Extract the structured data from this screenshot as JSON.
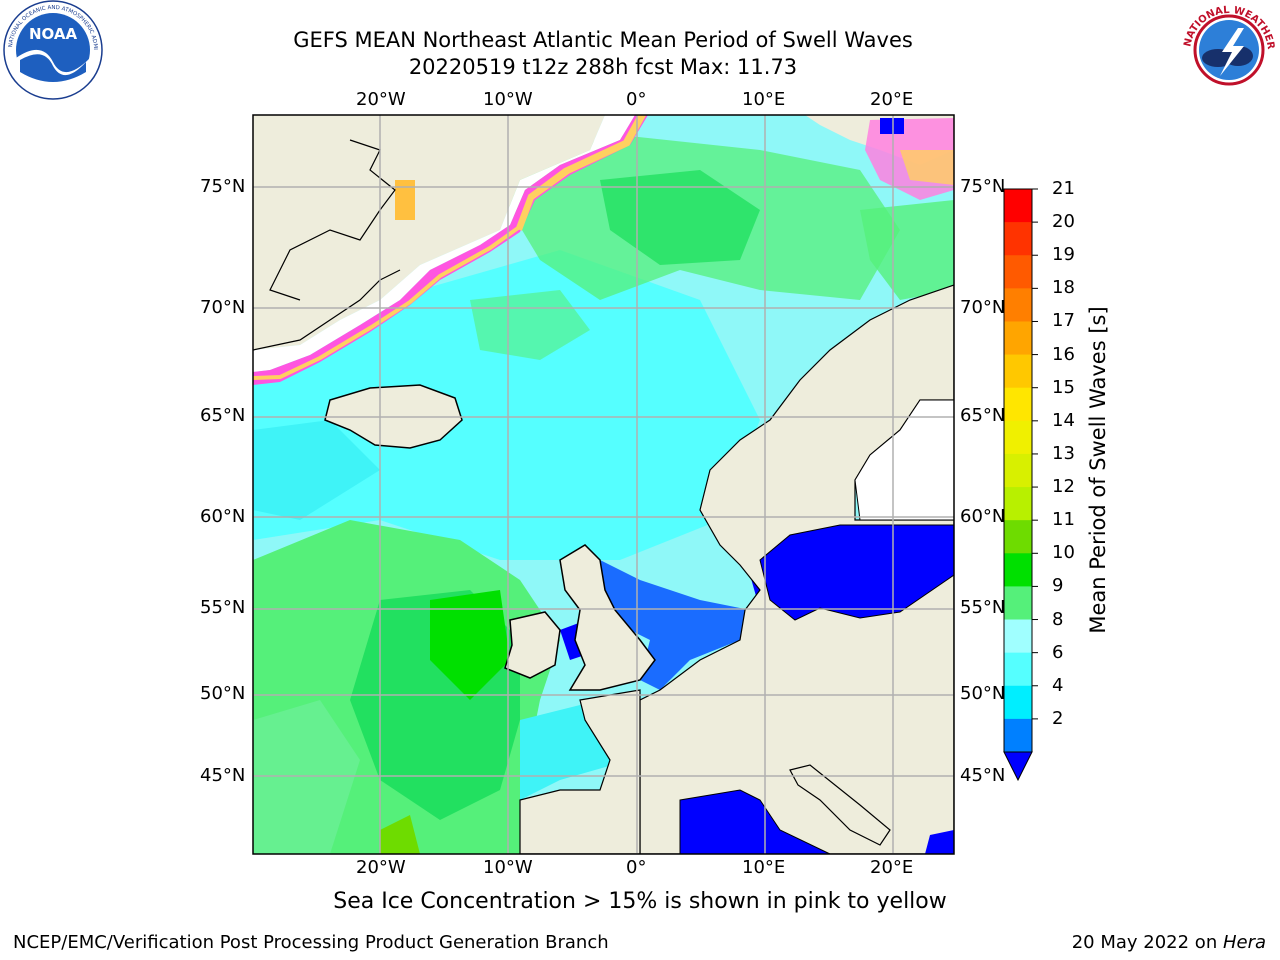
{
  "title": {
    "line1": "GEFS MEAN Northeast Atlantic Mean Period of Swell Waves",
    "line2": "20220519 t12z 288h fcst   Max: 11.73"
  },
  "logos": {
    "left": {
      "name": "noaa-logo",
      "text": "NOAA",
      "ring_text": "NATIONAL OCEANIC AND ATMOSPHERIC ADMINISTRATION · U.S. DEPARTMENT OF COMMERCE"
    },
    "right": {
      "name": "nws-logo",
      "ring_text": "NATIONAL WEATHER SERVICE"
    }
  },
  "map": {
    "lon_ticks": [
      "20°W",
      "10°W",
      "0°",
      "10°E",
      "20°E"
    ],
    "lat_ticks": [
      "75°N",
      "70°N",
      "65°N",
      "60°N",
      "55°N",
      "50°N",
      "45°N"
    ],
    "colors": {
      "land": "#eeeddc",
      "ice_free_white": "#ffffff",
      "grid": "#b0b0b0"
    }
  },
  "colorbar": {
    "title": "Mean Period of Swell Waves [s]",
    "labels": [
      "21",
      "20",
      "19",
      "18",
      "17",
      "16",
      "15",
      "14",
      "13",
      "12",
      "11",
      "10",
      "9",
      "8",
      "6",
      "4",
      "2"
    ],
    "colors": [
      "#ff0000",
      "#ff3300",
      "#ff5a00",
      "#ff7f00",
      "#ffa500",
      "#ffc800",
      "#ffe600",
      "#f0f000",
      "#d8f000",
      "#b8f000",
      "#6edc00",
      "#00e000",
      "#55f07a",
      "#a0ffff",
      "#55ffff",
      "#00eeff",
      "#0080ff",
      "#0000ff"
    ]
  },
  "caption": "Sea Ice Concentration > 15% is shown in pink to yellow",
  "footer": {
    "left": "NCEP/EMC/Verification Post Processing Product Generation Branch",
    "right_prefix": "20 May 2022 on ",
    "right_italic": "Hera"
  }
}
